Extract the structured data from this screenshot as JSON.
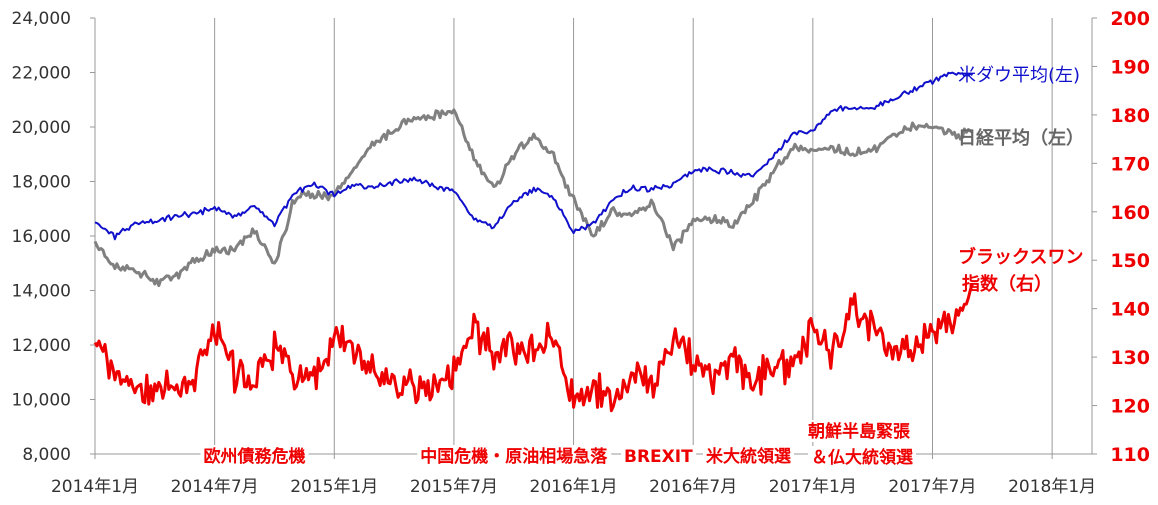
{
  "chart_data": {
    "type": "line",
    "title": "",
    "x_ticks": [
      "2014年1月",
      "2014年7月",
      "2015年1月",
      "2015年7月",
      "2016年1月",
      "2016年7月",
      "2017年1月",
      "2017年7月",
      "2018年1月"
    ],
    "xlim": [
      "2014-01",
      "2018-03"
    ],
    "y_left": {
      "lim": [
        8000,
        24000
      ],
      "ticks": [
        "8,000",
        "10,000",
        "12,000",
        "14,000",
        "16,000",
        "18,000",
        "20,000",
        "22,000",
        "24,000"
      ]
    },
    "y_right": {
      "lim": [
        110,
        200
      ],
      "ticks": [
        "110",
        "120",
        "130",
        "140",
        "150",
        "160",
        "170",
        "180",
        "190",
        "200"
      ]
    },
    "grid": {
      "vertical": true,
      "horizontal": false
    },
    "colors": {
      "dow": "#1010cc",
      "nikkei": "#808080",
      "black_swan": "#ee0000",
      "axis": "#999999",
      "grid": "#999999"
    },
    "series": [
      {
        "name": "米ダウ平均(左)",
        "axis": "left",
        "color": "#1010cc",
        "points": [
          [
            "2014-01",
            16500
          ],
          [
            "2014-02",
            16000
          ],
          [
            "2014-03",
            16400
          ],
          [
            "2014-04",
            16550
          ],
          [
            "2014-05",
            16700
          ],
          [
            "2014-06",
            16850
          ],
          [
            "2014-07",
            17000
          ],
          [
            "2014-08",
            16700
          ],
          [
            "2014-09",
            17100
          ],
          [
            "2014-10",
            16400
          ],
          [
            "2014-11",
            17600
          ],
          [
            "2014-12",
            17900
          ],
          [
            "2015-01",
            17500
          ],
          [
            "2015-02",
            17900
          ],
          [
            "2015-03",
            17800
          ],
          [
            "2015-04",
            18000
          ],
          [
            "2015-05",
            18100
          ],
          [
            "2015-06",
            17800
          ],
          [
            "2015-07",
            17700
          ],
          [
            "2015-08",
            16600
          ],
          [
            "2015-09",
            16300
          ],
          [
            "2015-10",
            17300
          ],
          [
            "2015-11",
            17700
          ],
          [
            "2015-12",
            17400
          ],
          [
            "2016-01",
            16100
          ],
          [
            "2016-02",
            16500
          ],
          [
            "2016-03",
            17400
          ],
          [
            "2016-04",
            17800
          ],
          [
            "2016-05",
            17700
          ],
          [
            "2016-06",
            17900
          ],
          [
            "2016-07",
            18400
          ],
          [
            "2016-08",
            18450
          ],
          [
            "2016-09",
            18300
          ],
          [
            "2016-10",
            18200
          ],
          [
            "2016-11",
            18900
          ],
          [
            "2016-12",
            19750
          ],
          [
            "2017-01",
            19850
          ],
          [
            "2017-02",
            20600
          ],
          [
            "2017-03",
            20700
          ],
          [
            "2017-04",
            20700
          ],
          [
            "2017-05",
            21000
          ],
          [
            "2017-06",
            21350
          ],
          [
            "2017-07",
            21700
          ],
          [
            "2017-08",
            21950
          ],
          [
            "2017-09",
            21900
          ]
        ]
      },
      {
        "name": "日経平均（左）",
        "axis": "left",
        "color": "#808080",
        "points": [
          [
            "2014-01",
            15800
          ],
          [
            "2014-02",
            14800
          ],
          [
            "2014-03",
            14800
          ],
          [
            "2014-04",
            14300
          ],
          [
            "2014-05",
            14500
          ],
          [
            "2014-06",
            15100
          ],
          [
            "2014-07",
            15400
          ],
          [
            "2014-08",
            15500
          ],
          [
            "2014-09",
            16200
          ],
          [
            "2014-10",
            14900
          ],
          [
            "2014-11",
            17400
          ],
          [
            "2014-12",
            17500
          ],
          [
            "2015-01",
            17500
          ],
          [
            "2015-02",
            18500
          ],
          [
            "2015-03",
            19400
          ],
          [
            "2015-04",
            19900
          ],
          [
            "2015-05",
            20300
          ],
          [
            "2015-06",
            20400
          ],
          [
            "2015-07",
            20600
          ],
          [
            "2015-08",
            18900
          ],
          [
            "2015-09",
            17700
          ],
          [
            "2015-10",
            19000
          ],
          [
            "2015-11",
            19700
          ],
          [
            "2015-12",
            18900
          ],
          [
            "2016-01",
            17300
          ],
          [
            "2016-02",
            16000
          ],
          [
            "2016-03",
            17000
          ],
          [
            "2016-04",
            16700
          ],
          [
            "2016-05",
            17200
          ],
          [
            "2016-06",
            15600
          ],
          [
            "2016-07",
            16500
          ],
          [
            "2016-08",
            16600
          ],
          [
            "2016-09",
            16400
          ],
          [
            "2016-10",
            17300
          ],
          [
            "2016-11",
            18300
          ],
          [
            "2016-12",
            19300
          ],
          [
            "2017-01",
            19100
          ],
          [
            "2017-02",
            19200
          ],
          [
            "2017-03",
            19000
          ],
          [
            "2017-04",
            19200
          ],
          [
            "2017-05",
            19700
          ],
          [
            "2017-06",
            20000
          ],
          [
            "2017-07",
            20000
          ],
          [
            "2017-08",
            19700
          ],
          [
            "2017-09",
            19800
          ]
        ]
      },
      {
        "name": "ブラックスワン指数（右）",
        "axis": "right",
        "color": "#ee0000",
        "points": [
          [
            "2014-01",
            133
          ],
          [
            "2014-02",
            128
          ],
          [
            "2014-03",
            125
          ],
          [
            "2014-04",
            123
          ],
          [
            "2014-05",
            125
          ],
          [
            "2014-06",
            126
          ],
          [
            "2014-07",
            137
          ],
          [
            "2014-08",
            127
          ],
          [
            "2014-09",
            125
          ],
          [
            "2014-10",
            132
          ],
          [
            "2014-11",
            127
          ],
          [
            "2014-12",
            126
          ],
          [
            "2015-01",
            134
          ],
          [
            "2015-02",
            130
          ],
          [
            "2015-03",
            126
          ],
          [
            "2015-04",
            124
          ],
          [
            "2015-05",
            124
          ],
          [
            "2015-06",
            123
          ],
          [
            "2015-07",
            127
          ],
          [
            "2015-08",
            136
          ],
          [
            "2015-09",
            131
          ],
          [
            "2015-10",
            132
          ],
          [
            "2015-11",
            131
          ],
          [
            "2015-12",
            134
          ],
          [
            "2016-01",
            122
          ],
          [
            "2016-02",
            124
          ],
          [
            "2016-03",
            122
          ],
          [
            "2016-04",
            126
          ],
          [
            "2016-05",
            125
          ],
          [
            "2016-06",
            135
          ],
          [
            "2016-07",
            129
          ],
          [
            "2016-08",
            126
          ],
          [
            "2016-09",
            129
          ],
          [
            "2016-10",
            124
          ],
          [
            "2016-11",
            128
          ],
          [
            "2016-12",
            128
          ],
          [
            "2017-01",
            136
          ],
          [
            "2017-02",
            131
          ],
          [
            "2017-03",
            140
          ],
          [
            "2017-04",
            137
          ],
          [
            "2017-05",
            130
          ],
          [
            "2017-06",
            131
          ],
          [
            "2017-07",
            135
          ],
          [
            "2017-08",
            137
          ],
          [
            "2017-09",
            145
          ]
        ]
      }
    ],
    "annotations": [
      {
        "text": "欧州債務危機",
        "x": "2014-09"
      },
      {
        "text": "中国危機・原油相場急落",
        "x": "2015-10"
      },
      {
        "text": "BREXIT",
        "x": "2016-06"
      },
      {
        "text": "米大統領選",
        "x": "2016-11"
      },
      {
        "text": "朝鮮半島緊張",
        "x": "2017-04",
        "line": 1
      },
      {
        "text": "＆仏大統領選",
        "x": "2017-04",
        "line": 2
      }
    ]
  },
  "labels": {
    "dow": "米ダウ平均(左)",
    "nikkei": "日経平均（左）",
    "bs_line1": "ブラックスワン",
    "bs_line2": "指数（右）"
  }
}
